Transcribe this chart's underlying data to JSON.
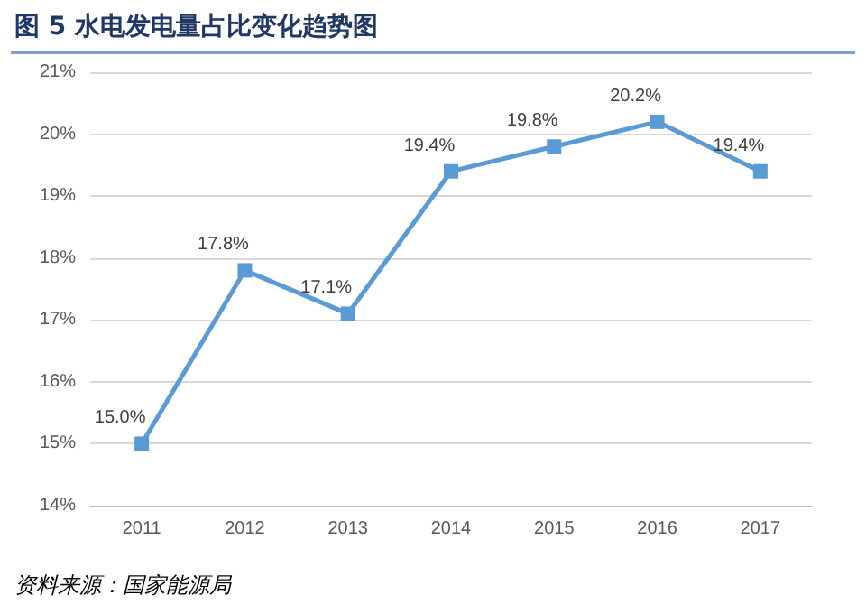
{
  "chart_data": {
    "type": "line",
    "title": "图 5 水电发电量占比变化趋势图",
    "categories": [
      "2011",
      "2012",
      "2013",
      "2014",
      "2015",
      "2016",
      "2017"
    ],
    "series": [
      {
        "color": "#5b9bd5",
        "values": [
          15.0,
          17.8,
          17.1,
          19.4,
          19.8,
          20.2,
          19.4
        ],
        "value_labels": [
          "15.0%",
          "17.8%",
          "17.1%",
          "19.4%",
          "19.8%",
          "20.2%",
          "19.4%"
        ]
      }
    ],
    "ylim": [
      14,
      21
    ],
    "yticks": [
      {
        "value": 14,
        "label": "14%"
      },
      {
        "value": 15,
        "label": "15%"
      },
      {
        "value": 16,
        "label": "16%"
      },
      {
        "value": 17,
        "label": "17%"
      },
      {
        "value": 18,
        "label": "18%"
      },
      {
        "value": 19,
        "label": "19%"
      },
      {
        "value": 20,
        "label": "20%"
      },
      {
        "value": 21,
        "label": "21%"
      }
    ],
    "grid": "y",
    "marker": "square",
    "line_style": "solid",
    "annotations": [
      "资料来源：国家能源局"
    ]
  }
}
